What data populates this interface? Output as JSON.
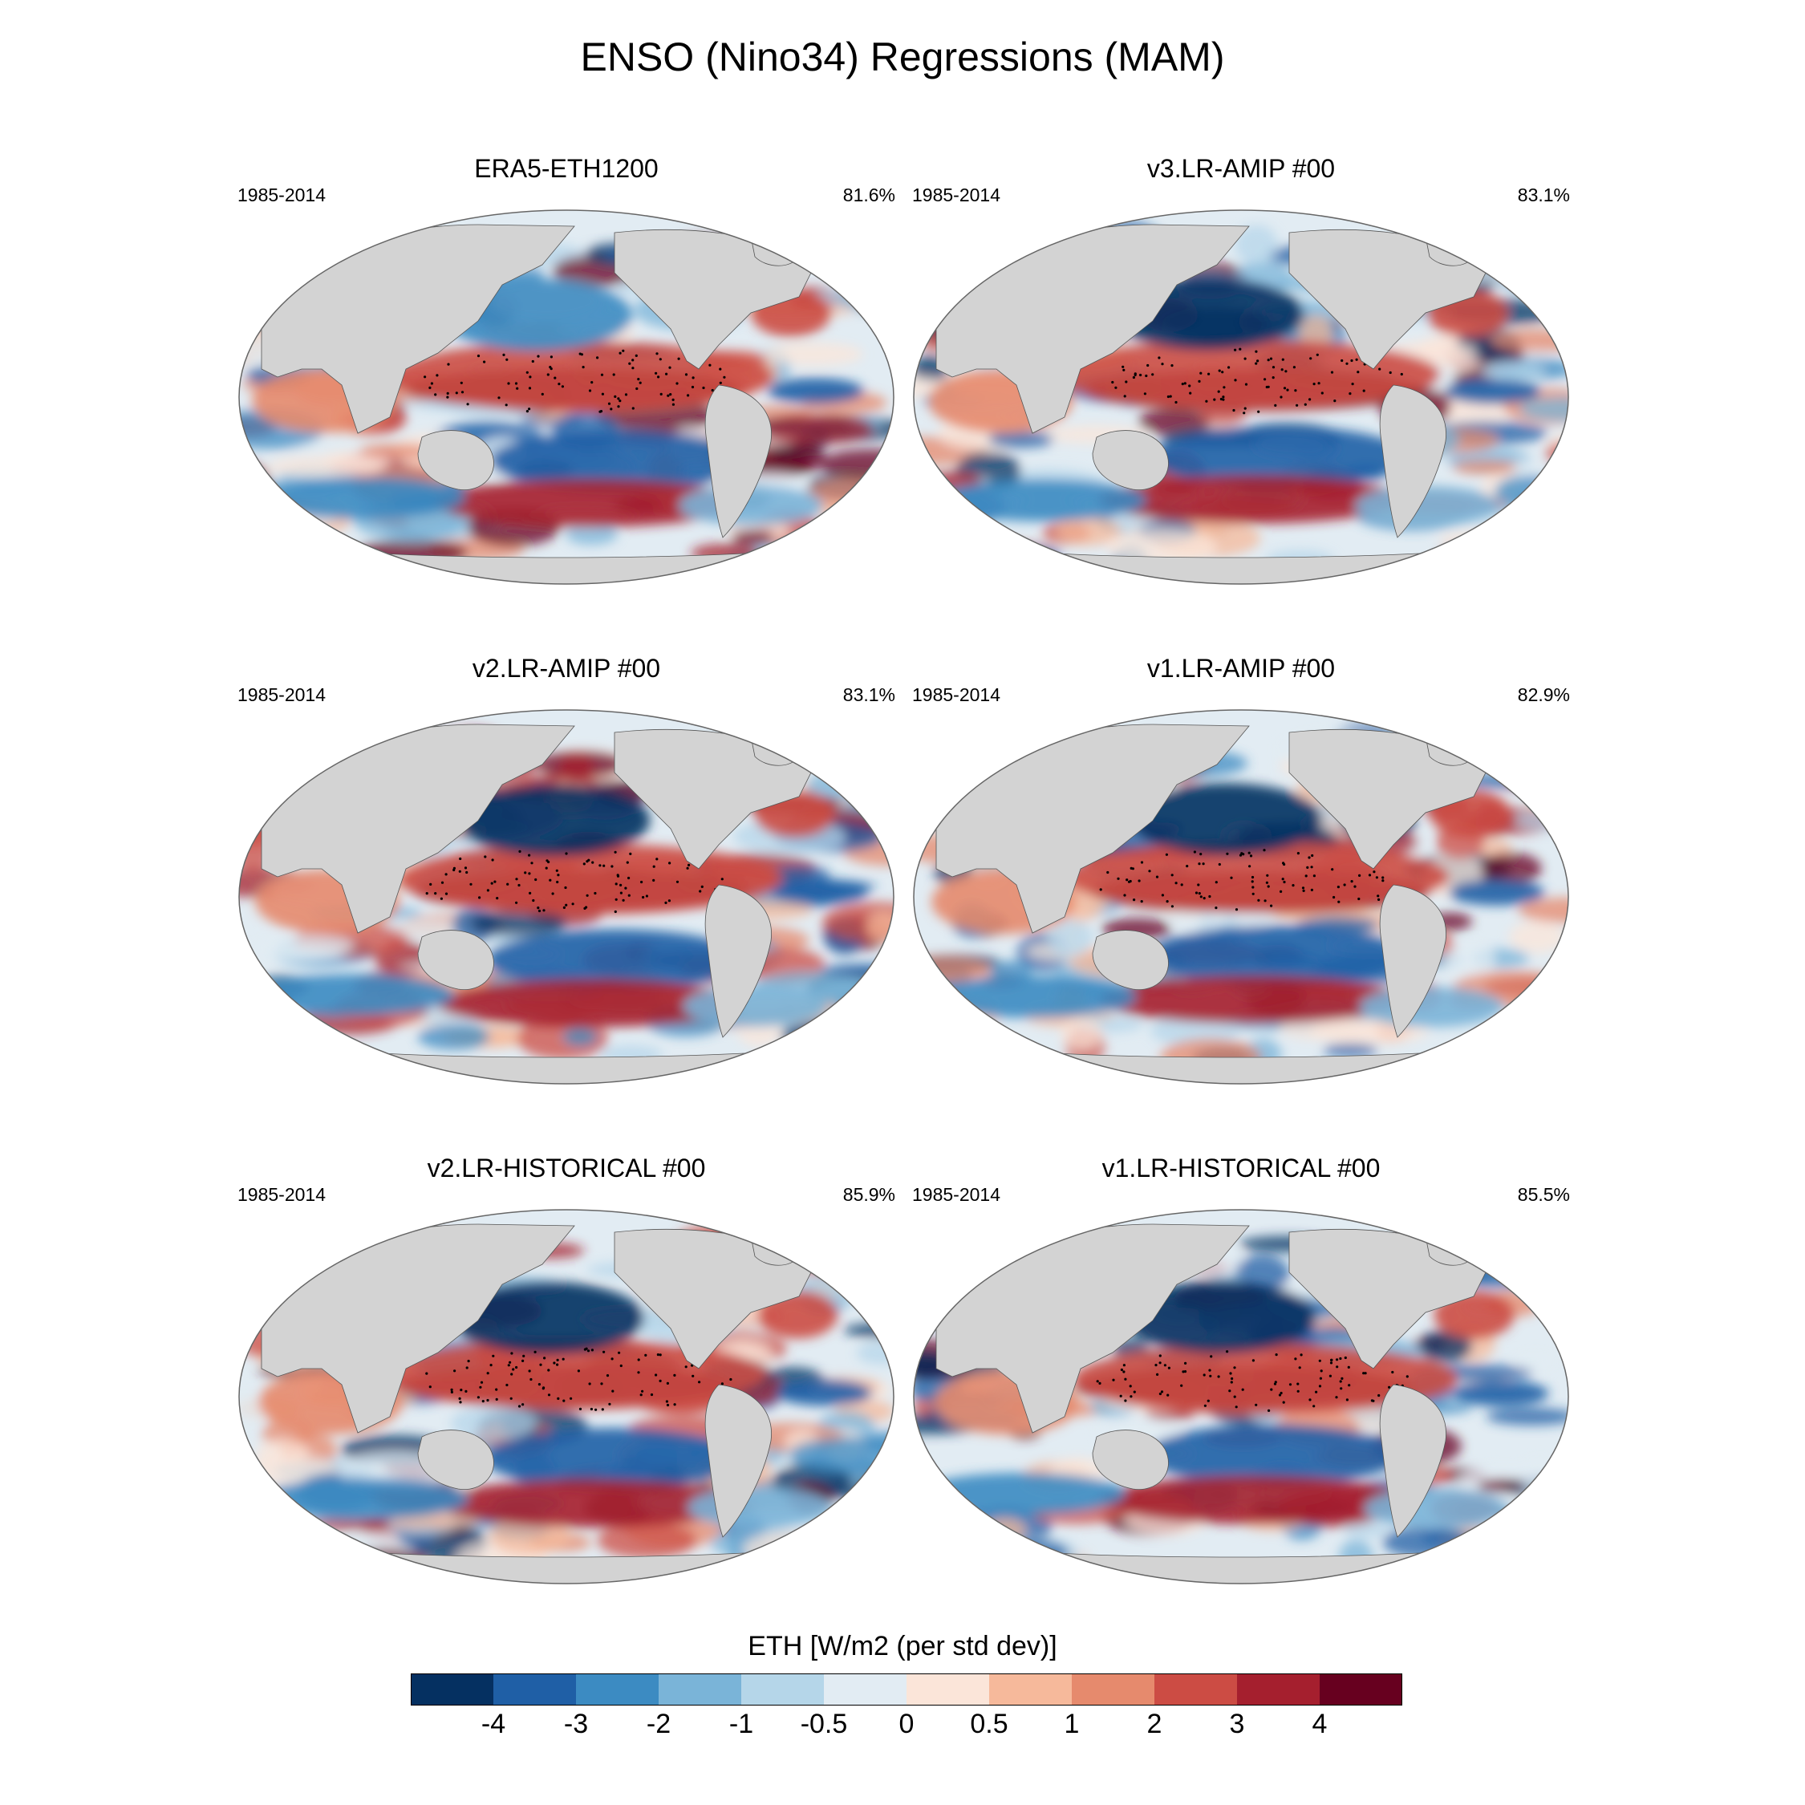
{
  "title": "ENSO (Nino34) Regressions (MAM)",
  "colors": {
    "land": "#d3d3d3",
    "map_outline": "#666666",
    "stipple": "#000000"
  },
  "chart_data": {
    "type": "heatmap",
    "projection": "Robinson-like global map, Pacific-centered",
    "panels": [
      {
        "title": "ERA5-ETH1200",
        "period": "1985-2014",
        "pattern_correlation": "81.6%"
      },
      {
        "title": "v3.LR-AMIP  #00",
        "period": "1985-2014",
        "pattern_correlation": "83.1%"
      },
      {
        "title": "v2.LR-AMIP  #00",
        "period": "1985-2014",
        "pattern_correlation": "83.1%"
      },
      {
        "title": "v1.LR-AMIP  #00",
        "period": "1985-2014",
        "pattern_correlation": "82.9%"
      },
      {
        "title": "v2.LR-HISTORICAL  #00",
        "period": "1985-2014",
        "pattern_correlation": "85.9%"
      },
      {
        "title": "v1.LR-HISTORICAL  #00",
        "period": "1985-2014",
        "pattern_correlation": "85.5%"
      }
    ],
    "colorbar": {
      "label": "ETH [W/m2 (per std dev)]",
      "tick_labels": [
        "-4",
        "-3",
        "-2",
        "-1",
        "-0.5",
        "0",
        "0.5",
        "1",
        "2",
        "3",
        "4"
      ],
      "levels": [
        -4,
        -3,
        -2,
        -1,
        -0.5,
        0,
        0.5,
        1,
        2,
        3,
        4
      ],
      "colors": [
        "#053061",
        "#1f5fa6",
        "#3c8bc2",
        "#7ab4d8",
        "#b5d6e9",
        "#e2ecf3",
        "#fbe5d9",
        "#f6b99b",
        "#e68a6d",
        "#cc4c44",
        "#a51f2e",
        "#67001f"
      ]
    }
  }
}
